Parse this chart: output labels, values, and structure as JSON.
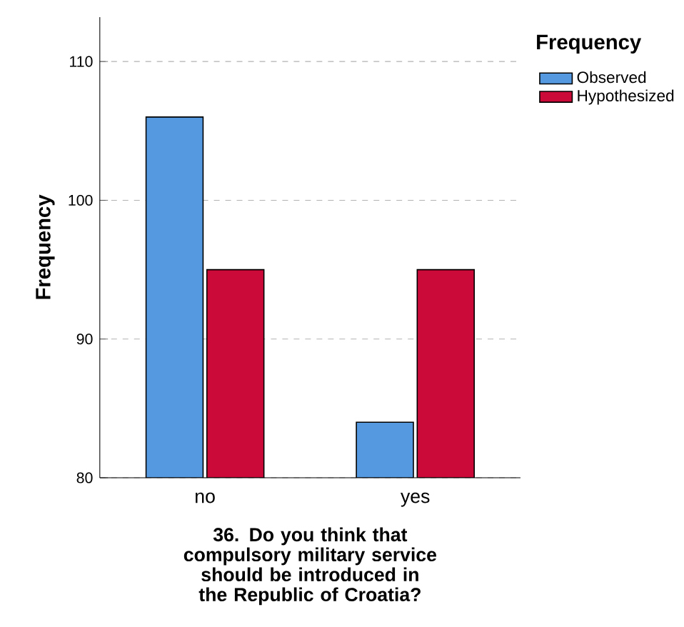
{
  "chart_data": {
    "type": "bar",
    "xlabel": "36. Do you think that compulsory military service should be introduced in the Republic of Croatia?",
    "ylabel": "Frequency",
    "legend_title": "Frequency",
    "categories": [
      "no",
      "yes"
    ],
    "series": [
      {
        "name": "Observed",
        "color": "#5599e0",
        "values": [
          106,
          84
        ]
      },
      {
        "name": "Hypothesized",
        "color": "#cc0a3a",
        "values": [
          95,
          95
        ]
      }
    ],
    "ylim": [
      80,
      113.2
    ],
    "yticks": [
      80,
      90,
      100,
      110
    ],
    "grid": "y",
    "legend": "top right"
  }
}
